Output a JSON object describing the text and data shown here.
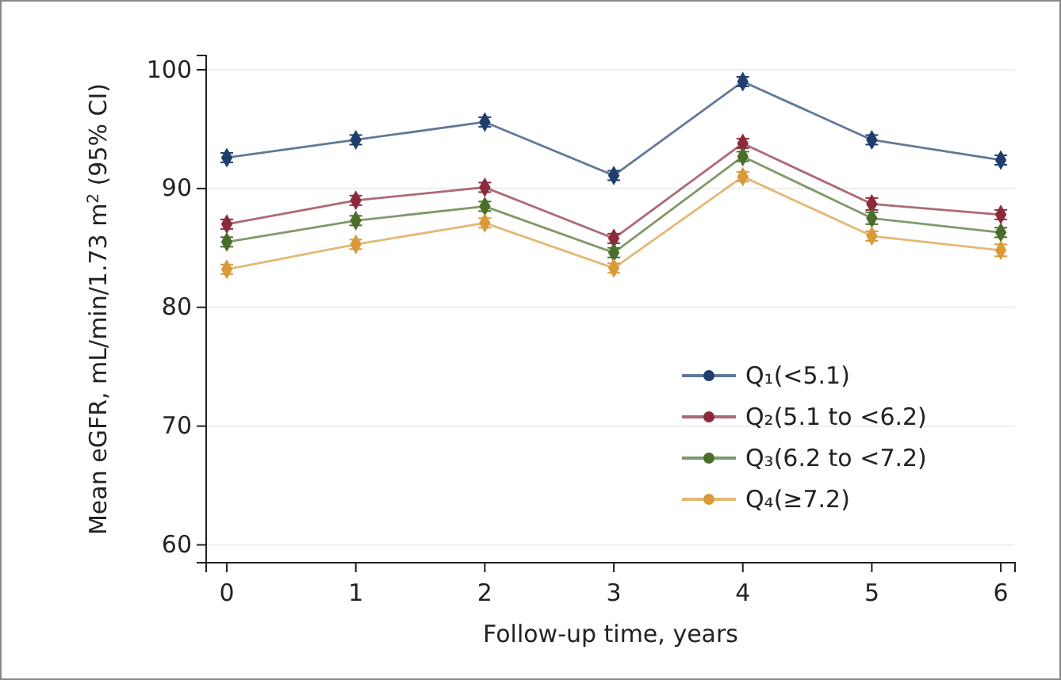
{
  "chart_data": {
    "type": "line",
    "xlabel": "Follow-up time, years",
    "ylabel": "Mean eGFR, mL/min/1.73 m$^{2}$ (95% CI)",
    "x": [
      0,
      1,
      2,
      3,
      4,
      5,
      6
    ],
    "xlim": [
      -0.16,
      6.11
    ],
    "xticks": [
      0,
      1,
      2,
      3,
      4,
      5,
      6
    ],
    "ylim": [
      58.5,
      101.2
    ],
    "yticks": [
      60,
      70,
      80,
      90,
      100
    ],
    "grid": "y",
    "legend": "bottom right",
    "marker": "diamond",
    "line_style": "solid",
    "series": [
      {
        "name": "Q₁(<5.1)",
        "color": "#1f3e6e",
        "values": [
          92.6,
          94.1,
          95.6,
          91.1,
          99.0,
          94.1,
          92.4
        ],
        "errors": [
          0.4,
          0.4,
          0.4,
          0.4,
          0.4,
          0.4,
          0.4
        ]
      },
      {
        "name": "Q₂(5.1 to <6.2)",
        "color": "#8b2a3d",
        "values": [
          87.0,
          89.0,
          90.1,
          85.8,
          93.8,
          88.7,
          87.8
        ],
        "errors": [
          0.4,
          0.4,
          0.4,
          0.4,
          0.4,
          0.5,
          0.4
        ]
      },
      {
        "name": "Q₃(6.2 to <7.2)",
        "color": "#4a6e2a",
        "values": [
          85.5,
          87.3,
          88.5,
          84.6,
          92.7,
          87.5,
          86.3
        ],
        "errors": [
          0.4,
          0.4,
          0.4,
          0.4,
          0.4,
          0.5,
          0.4
        ]
      },
      {
        "name": "Q₄(≥7.2)",
        "color": "#d99a3a",
        "values": [
          83.2,
          85.3,
          87.1,
          83.3,
          91.0,
          86.0,
          84.8
        ],
        "errors": [
          0.4,
          0.4,
          0.4,
          0.4,
          0.4,
          0.4,
          0.5
        ]
      }
    ]
  }
}
